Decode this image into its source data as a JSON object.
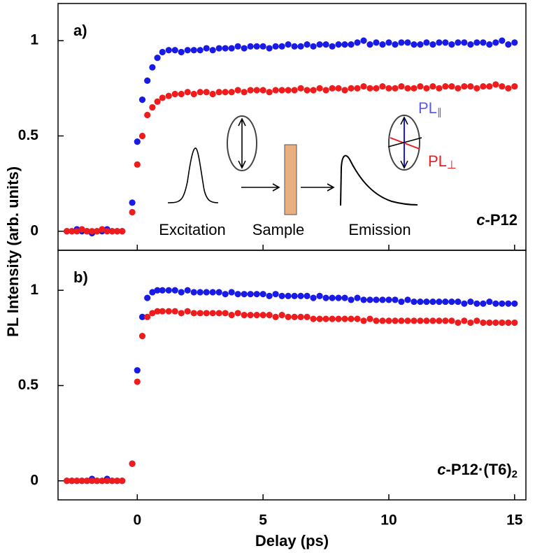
{
  "figure": {
    "ylabel": "PL Intensity (arb. units)"
  },
  "chart_data": [
    {
      "type": "scatter",
      "panel": "a)",
      "sample_prefix": "c",
      "sample": "-P12",
      "inset": {
        "labels": [
          "Excitation",
          "Sample",
          "Emission"
        ],
        "pl_parallel": [
          "PL",
          "∥"
        ],
        "pl_perp": [
          "PL",
          "⊥"
        ]
      },
      "xlim": [
        -3.15,
        15.45
      ],
      "xticks": [
        0,
        5,
        10,
        15
      ],
      "ylim": [
        -0.1,
        1.195
      ],
      "yticks": [
        0,
        0.5,
        1
      ],
      "grid": false,
      "x": [
        -2.8,
        -2.6,
        -2.4,
        -2.2,
        -2,
        -1.8,
        -1.6,
        -1.4,
        -1.2,
        -1,
        -0.8,
        -0.6,
        -0.2,
        0,
        0.2,
        0.4,
        0.6,
        0.8,
        1,
        1.25,
        1.5,
        1.75,
        2,
        2.25,
        2.5,
        2.75,
        3,
        3.25,
        3.5,
        3.75,
        4,
        4.25,
        4.5,
        4.75,
        5,
        5.25,
        5.5,
        5.75,
        6,
        6.25,
        6.5,
        6.75,
        7,
        7.25,
        7.5,
        7.75,
        8,
        8.25,
        8.5,
        8.75,
        9,
        9.25,
        9.5,
        9.75,
        10,
        10.25,
        10.5,
        10.75,
        11,
        11.25,
        11.5,
        11.75,
        12,
        12.25,
        12.5,
        12.75,
        13,
        13.25,
        13.5,
        13.75,
        14,
        14.25,
        14.5,
        14.75,
        15
      ],
      "series": [
        {
          "color": "#1a1ae6",
          "values": [
            0,
            0,
            0.01,
            0,
            0,
            -0.01,
            0,
            0,
            0.01,
            0,
            0,
            0,
            0.15,
            0.47,
            0.69,
            0.79,
            0.86,
            0.91,
            0.94,
            0.95,
            0.95,
            0.94,
            0.95,
            0.95,
            0.95,
            0.96,
            0.95,
            0.96,
            0.96,
            0.96,
            0.97,
            0.96,
            0.97,
            0.97,
            0.97,
            0.96,
            0.97,
            0.97,
            0.98,
            0.97,
            0.97,
            0.98,
            0.97,
            0.98,
            0.98,
            0.97,
            0.98,
            0.98,
            0.98,
            0.99,
            1.0,
            0.98,
            0.99,
            0.98,
            0.99,
            0.98,
            0.99,
            0.99,
            0.98,
            0.98,
            0.99,
            0.98,
            0.99,
            0.99,
            0.98,
            0.99,
            0.99,
            0.98,
            0.99,
            0.99,
            0.98,
            0.99,
            1.0,
            0.98,
            0.99
          ]
        },
        {
          "color": "#ee1c1c",
          "values": [
            0,
            0,
            0,
            0.01,
            0,
            0,
            0,
            0.01,
            0,
            0,
            0,
            0,
            0.1,
            0.35,
            0.5,
            0.61,
            0.65,
            0.68,
            0.7,
            0.71,
            0.72,
            0.72,
            0.73,
            0.72,
            0.73,
            0.73,
            0.72,
            0.73,
            0.73,
            0.73,
            0.74,
            0.73,
            0.74,
            0.74,
            0.74,
            0.73,
            0.74,
            0.74,
            0.74,
            0.74,
            0.75,
            0.74,
            0.74,
            0.75,
            0.74,
            0.75,
            0.75,
            0.74,
            0.75,
            0.75,
            0.76,
            0.75,
            0.75,
            0.76,
            0.75,
            0.75,
            0.76,
            0.75,
            0.75,
            0.76,
            0.75,
            0.76,
            0.75,
            0.76,
            0.76,
            0.75,
            0.76,
            0.76,
            0.75,
            0.76,
            0.76,
            0.77,
            0.76,
            0.75,
            0.76
          ]
        }
      ]
    },
    {
      "type": "scatter",
      "panel": "b)",
      "sample_prefix": "c",
      "sample": "-P12·(T6)",
      "sample_subscript": "2",
      "xlabel": "Delay (ps)",
      "xlim": [
        -3.15,
        15.45
      ],
      "xticks": [
        0,
        5,
        10,
        15
      ],
      "ylim": [
        -0.1,
        1.21
      ],
      "yticks": [
        0,
        0.5,
        1
      ],
      "grid": false,
      "x": [
        -2.8,
        -2.6,
        -2.4,
        -2.2,
        -2,
        -1.8,
        -1.6,
        -1.4,
        -1.2,
        -1,
        -0.8,
        -0.6,
        -0.2,
        0,
        0.2,
        0.4,
        0.6,
        0.8,
        1,
        1.25,
        1.5,
        1.75,
        2,
        2.25,
        2.5,
        2.75,
        3,
        3.25,
        3.5,
        3.75,
        4,
        4.25,
        4.5,
        4.75,
        5,
        5.25,
        5.5,
        5.75,
        6,
        6.25,
        6.5,
        6.75,
        7,
        7.25,
        7.5,
        7.75,
        8,
        8.25,
        8.5,
        8.75,
        9,
        9.25,
        9.5,
        9.75,
        10,
        10.25,
        10.5,
        10.75,
        11,
        11.25,
        11.5,
        11.75,
        12,
        12.25,
        12.5,
        12.75,
        13,
        13.25,
        13.5,
        13.75,
        14,
        14.25,
        14.5,
        14.75,
        15
      ],
      "series": [
        {
          "color": "#1a1ae6",
          "values": [
            0,
            0,
            0,
            0,
            0,
            0.01,
            0,
            0,
            0.01,
            0,
            0,
            0,
            0.09,
            0.58,
            0.86,
            0.96,
            0.99,
            1.0,
            1.0,
            1.0,
            1.0,
            0.99,
            1.0,
            0.99,
            0.99,
            0.99,
            0.99,
            0.99,
            0.98,
            0.99,
            0.98,
            0.98,
            0.98,
            0.98,
            0.98,
            0.97,
            0.98,
            0.97,
            0.97,
            0.97,
            0.97,
            0.97,
            0.96,
            0.97,
            0.96,
            0.96,
            0.96,
            0.96,
            0.95,
            0.96,
            0.95,
            0.95,
            0.95,
            0.95,
            0.95,
            0.95,
            0.94,
            0.95,
            0.94,
            0.94,
            0.94,
            0.94,
            0.94,
            0.94,
            0.94,
            0.94,
            0.93,
            0.94,
            0.93,
            0.93,
            0.94,
            0.93,
            0.93,
            0.93,
            0.93
          ]
        },
        {
          "color": "#ee1c1c",
          "values": [
            0,
            0,
            0,
            0,
            0,
            0,
            0,
            0,
            0,
            0,
            0,
            0,
            0.09,
            0.52,
            0.76,
            0.86,
            0.88,
            0.89,
            0.89,
            0.89,
            0.89,
            0.88,
            0.89,
            0.88,
            0.88,
            0.88,
            0.88,
            0.88,
            0.88,
            0.87,
            0.88,
            0.87,
            0.87,
            0.87,
            0.87,
            0.87,
            0.86,
            0.87,
            0.86,
            0.86,
            0.86,
            0.86,
            0.85,
            0.85,
            0.85,
            0.85,
            0.85,
            0.85,
            0.85,
            0.85,
            0.84,
            0.85,
            0.84,
            0.84,
            0.84,
            0.84,
            0.84,
            0.84,
            0.84,
            0.84,
            0.84,
            0.84,
            0.84,
            0.84,
            0.84,
            0.83,
            0.84,
            0.83,
            0.84,
            0.83,
            0.83,
            0.83,
            0.83,
            0.83,
            0.83
          ]
        }
      ]
    }
  ]
}
